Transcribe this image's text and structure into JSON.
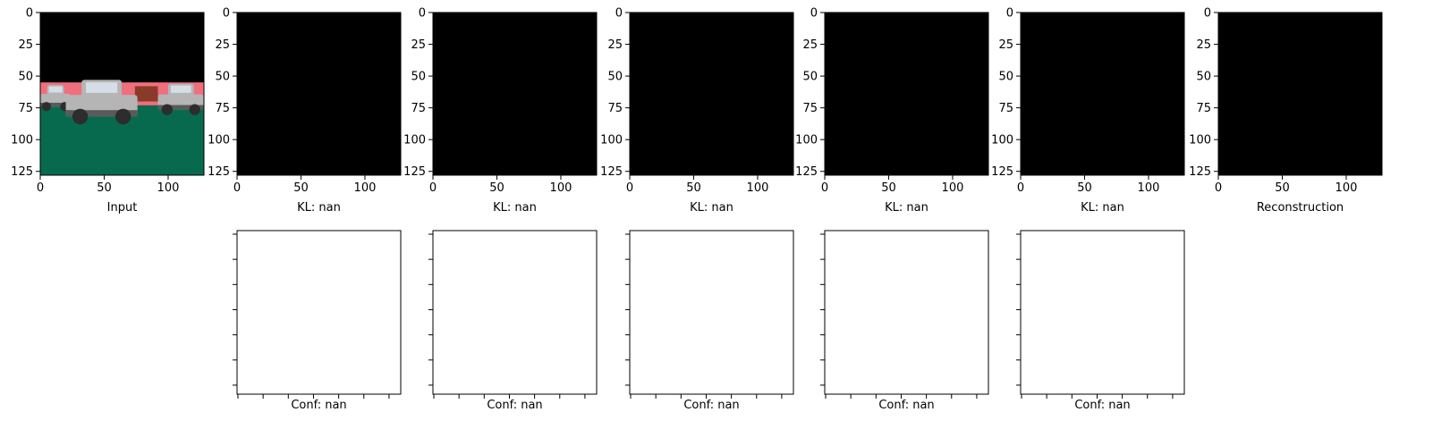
{
  "figure": {
    "background": "#ffffff",
    "image_panel_fill": "#000000",
    "conf_panel_fill": "#ffffff",
    "scene_colors": {
      "ground": "#076a4e",
      "backdrop": "#ef6f7d",
      "car_body": "#b5b5b5",
      "car_shadow": "#5a5a5a",
      "wheel": "#2d2d2d",
      "window": "#d6dde6",
      "brown_object": "#8b3a2a"
    }
  },
  "chart_data": [
    {
      "type": "image",
      "title": "",
      "xlabel": "Input",
      "ylabel": "",
      "xlim": [
        0,
        128
      ],
      "ylim": [
        128,
        0
      ],
      "xticks": [
        "0",
        "50",
        "100"
      ],
      "yticks": [
        "0",
        "25",
        "50",
        "75",
        "100",
        "125"
      ],
      "content": "rendered scene: three grey cars on green ground with pink backdrop, black sky"
    },
    {
      "type": "image",
      "title": "",
      "xlabel": "KL: nan",
      "ylabel": "",
      "xlim": [
        0,
        128
      ],
      "ylim": [
        128,
        0
      ],
      "xticks": [
        "0",
        "50",
        "100"
      ],
      "yticks": [
        "0",
        "25",
        "50",
        "75",
        "100",
        "125"
      ],
      "content": "all black"
    },
    {
      "type": "image",
      "title": "",
      "xlabel": "KL: nan",
      "ylabel": "",
      "xlim": [
        0,
        128
      ],
      "ylim": [
        128,
        0
      ],
      "xticks": [
        "0",
        "50",
        "100"
      ],
      "yticks": [
        "0",
        "25",
        "50",
        "75",
        "100",
        "125"
      ],
      "content": "all black"
    },
    {
      "type": "image",
      "title": "",
      "xlabel": "KL: nan",
      "ylabel": "",
      "xlim": [
        0,
        128
      ],
      "ylim": [
        128,
        0
      ],
      "xticks": [
        "0",
        "50",
        "100"
      ],
      "yticks": [
        "0",
        "25",
        "50",
        "75",
        "100",
        "125"
      ],
      "content": "all black"
    },
    {
      "type": "image",
      "title": "",
      "xlabel": "KL: nan",
      "ylabel": "",
      "xlim": [
        0,
        128
      ],
      "ylim": [
        128,
        0
      ],
      "xticks": [
        "0",
        "50",
        "100"
      ],
      "yticks": [
        "0",
        "25",
        "50",
        "75",
        "100",
        "125"
      ],
      "content": "all black"
    },
    {
      "type": "image",
      "title": "",
      "xlabel": "KL: nan",
      "ylabel": "",
      "xlim": [
        0,
        128
      ],
      "ylim": [
        128,
        0
      ],
      "xticks": [
        "0",
        "50",
        "100"
      ],
      "yticks": [
        "0",
        "25",
        "50",
        "75",
        "100",
        "125"
      ],
      "content": "all black"
    },
    {
      "type": "image",
      "title": "",
      "xlabel": "Reconstruction",
      "ylabel": "",
      "xlim": [
        0,
        128
      ],
      "ylim": [
        128,
        0
      ],
      "xticks": [
        "0",
        "50",
        "100"
      ],
      "yticks": [
        "0",
        "25",
        "50",
        "75",
        "100",
        "125"
      ],
      "content": "all black"
    },
    {
      "type": "empty",
      "xlabel": "Conf: nan",
      "tick_labels": false,
      "x_tick_count": 7,
      "y_tick_count": 7
    },
    {
      "type": "empty",
      "xlabel": "Conf: nan",
      "tick_labels": false,
      "x_tick_count": 7,
      "y_tick_count": 7
    },
    {
      "type": "empty",
      "xlabel": "Conf: nan",
      "tick_labels": false,
      "x_tick_count": 7,
      "y_tick_count": 7
    },
    {
      "type": "empty",
      "xlabel": "Conf: nan",
      "tick_labels": false,
      "x_tick_count": 7,
      "y_tick_count": 7
    },
    {
      "type": "empty",
      "xlabel": "Conf: nan",
      "tick_labels": false,
      "x_tick_count": 7,
      "y_tick_count": 7
    }
  ]
}
